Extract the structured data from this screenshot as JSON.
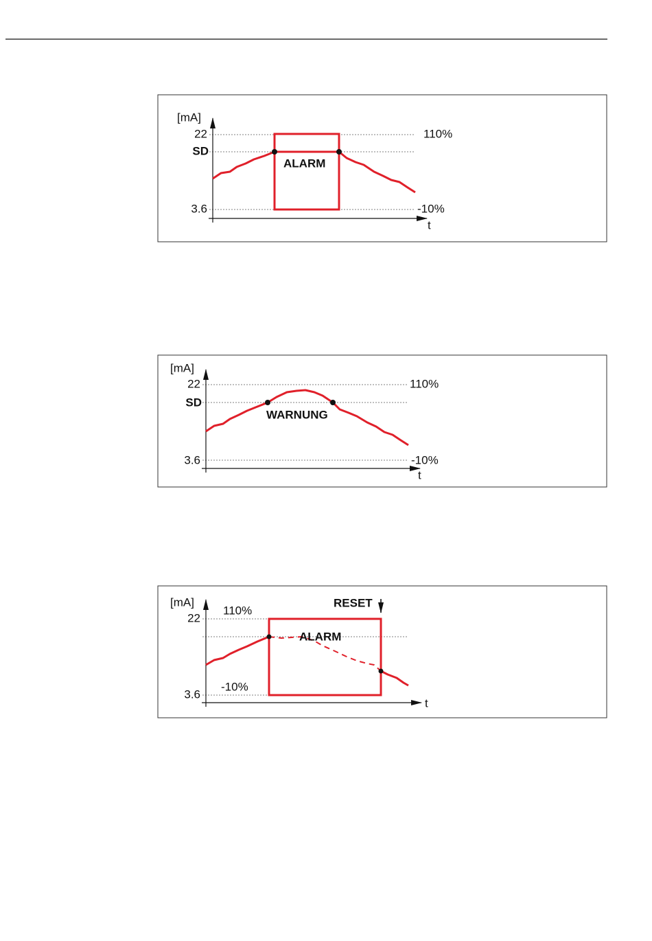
{
  "diagrams": [
    {
      "unit": "[mA]",
      "y_top": "22",
      "y_sd": "SD",
      "y_bottom": "3.6",
      "right_top": "110%",
      "right_bottom": "-10%",
      "x_axis": "t",
      "state": "ALARM"
    },
    {
      "unit": "[mA]",
      "y_top": "22",
      "y_sd": "SD",
      "y_bottom": "3.6",
      "right_top": "110%",
      "right_bottom": "-10%",
      "x_axis": "t",
      "state": "WARNUNG"
    },
    {
      "unit": "[mA]",
      "y_top": "22",
      "y_bottom": "3.6",
      "right_top": "110%",
      "right_bottom": "-10%",
      "x_axis": "t",
      "state": "ALARM",
      "reset": "RESET"
    }
  ]
}
